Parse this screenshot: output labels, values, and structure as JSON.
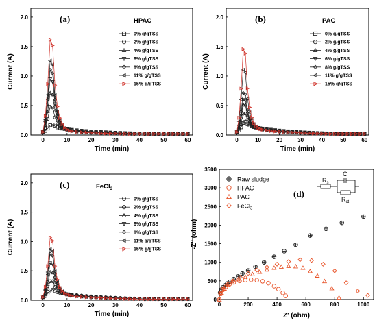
{
  "chart_data": [
    {
      "id": "a",
      "type": "line",
      "panel_label": "(a)",
      "title": "HPAC",
      "xlabel": "Time (min)",
      "ylabel": "Current (A)",
      "xlim": [
        -5,
        62
      ],
      "ylim": [
        0,
        2.15
      ],
      "xticks": [
        0,
        10,
        20,
        30,
        40,
        50,
        60
      ],
      "yticks": [
        0.0,
        0.5,
        1.0,
        1.5,
        2.0
      ],
      "legend_position": "top-right",
      "series": [
        {
          "name": "0% g/gTSS",
          "marker": "square",
          "color": "#222222",
          "peak": 0.2,
          "tail": 0.13
        },
        {
          "name": "2% g/gTSS",
          "marker": "circle",
          "color": "#222222",
          "peak": 0.6,
          "tail": 0.12
        },
        {
          "name": "4% g/gTSS",
          "marker": "triangle-up",
          "color": "#222222",
          "peak": 0.9,
          "tail": 0.11
        },
        {
          "name": "6% g/gTSS",
          "marker": "triangle-down",
          "color": "#222222",
          "peak": 1.2,
          "tail": 0.1
        },
        {
          "name": "8% g/gTSS",
          "marker": "diamond",
          "color": "#222222",
          "peak": 1.4,
          "tail": 0.09
        },
        {
          "name": "11% g/gTSS",
          "marker": "triangle-left",
          "color": "#222222",
          "peak": 1.6,
          "tail": 0.09
        },
        {
          "name": "15% g/gTSS",
          "marker": "triangle-right",
          "color": "#d0342c",
          "peak": 2.05,
          "tail": 0.08
        }
      ]
    },
    {
      "id": "b",
      "type": "line",
      "panel_label": "(b)",
      "title": "PAC",
      "xlabel": "Time (min)",
      "ylabel": "Current (A)",
      "xlim": [
        -5,
        62
      ],
      "ylim": [
        0,
        2.15
      ],
      "xticks": [
        0,
        10,
        20,
        30,
        40,
        50,
        60
      ],
      "yticks": [
        0.0,
        0.5,
        1.0,
        1.5,
        2.0
      ],
      "legend_position": "top-right",
      "series": [
        {
          "name": "0% g/gTSS",
          "marker": "square",
          "color": "#222222",
          "peak": 0.25,
          "tail": 0.16
        },
        {
          "name": "2% g/gTSS",
          "marker": "circle",
          "color": "#222222",
          "peak": 0.45,
          "tail": 0.15
        },
        {
          "name": "4% g/gTSS",
          "marker": "triangle-up",
          "color": "#222222",
          "peak": 0.65,
          "tail": 0.14
        },
        {
          "name": "6% g/gTSS",
          "marker": "triangle-down",
          "color": "#222222",
          "peak": 0.75,
          "tail": 0.14
        },
        {
          "name": "8% g/gTSS",
          "marker": "diamond",
          "color": "#222222",
          "peak": 0.9,
          "tail": 0.13
        },
        {
          "name": "11% g/gTSS",
          "marker": "triangle-left",
          "color": "#222222",
          "peak": 1.4,
          "tail": 0.13
        },
        {
          "name": "15% g/gTSS",
          "marker": "triangle-right",
          "color": "#d0342c",
          "peak": 1.85,
          "tail": 0.12
        }
      ]
    },
    {
      "id": "c",
      "type": "line",
      "panel_label": "(c)",
      "title": "FeCl",
      "title_sub": "3",
      "xlabel": "Time (min)",
      "ylabel": "Current (A)",
      "xlim": [
        -5,
        62
      ],
      "ylim": [
        0,
        2.15
      ],
      "xticks": [
        0,
        10,
        20,
        30,
        40,
        50,
        60
      ],
      "yticks": [
        0.0,
        0.5,
        1.0,
        1.5,
        2.0
      ],
      "legend_position": "top-right",
      "series": [
        {
          "name": "0% g/gTSS",
          "marker": "circle",
          "color": "#222222",
          "peak": 0.2,
          "tail": 0.14
        },
        {
          "name": "2% g/gTSS",
          "marker": "circle",
          "color": "#222222",
          "peak": 0.4,
          "tail": 0.13
        },
        {
          "name": "4% g/gTSS",
          "marker": "triangle-up",
          "color": "#222222",
          "peak": 0.6,
          "tail": 0.12
        },
        {
          "name": "6% g/gTSS",
          "marker": "triangle-down",
          "color": "#222222",
          "peak": 0.8,
          "tail": 0.12
        },
        {
          "name": "8% g/gTSS",
          "marker": "diamond",
          "color": "#222222",
          "peak": 1.0,
          "tail": 0.11
        },
        {
          "name": "11% g/gTSS",
          "marker": "triangle-left",
          "color": "#222222",
          "peak": 1.1,
          "tail": 0.11
        },
        {
          "name": "15% g/gTSS",
          "marker": "triangle-right",
          "color": "#d0342c",
          "peak": 1.35,
          "tail": 0.1
        }
      ]
    },
    {
      "id": "d",
      "type": "scatter",
      "panel_label": "(d)",
      "xlabel": "Z' (ohm)",
      "ylabel": "-Z'' (ohm)",
      "xlim": [
        0,
        1070
      ],
      "ylim": [
        0,
        3500
      ],
      "xticks": [
        0,
        200,
        400,
        600,
        800,
        1000
      ],
      "yticks": [
        0,
        500,
        1000,
        1500,
        2000,
        2500,
        3000,
        3500
      ],
      "legend_position": "top-left",
      "circuit_labels": {
        "rs": "R",
        "rs_sub": "s",
        "c": "C",
        "rct": "R",
        "rct_sub": "ct"
      },
      "series": [
        {
          "name": "Raw sludge",
          "marker": "plus-circle",
          "color": "#222222",
          "x": [
            5,
            15,
            25,
            40,
            55,
            75,
            100,
            130,
            160,
            200,
            250,
            310,
            380,
            450,
            530,
            630,
            740,
            850,
            1000
          ],
          "y": [
            180,
            270,
            330,
            380,
            430,
            480,
            550,
            620,
            700,
            780,
            880,
            1000,
            1150,
            1300,
            1470,
            1720,
            1900,
            2060,
            2230
          ]
        },
        {
          "name": "HPAC",
          "marker": "circle",
          "color": "#e8542a",
          "x": [
            0,
            10,
            25,
            45,
            70,
            100,
            140,
            180,
            220,
            260,
            300,
            340,
            380,
            410,
            440,
            460
          ],
          "y": [
            0,
            150,
            260,
            340,
            410,
            460,
            500,
            520,
            530,
            520,
            490,
            440,
            360,
            280,
            180,
            100
          ]
        },
        {
          "name": "PAC",
          "marker": "triangle-up",
          "color": "#e8542a",
          "x": [
            0,
            15,
            35,
            60,
            90,
            130,
            180,
            230,
            280,
            330,
            380,
            430,
            480,
            530,
            580,
            630,
            680,
            730,
            780,
            830
          ],
          "y": [
            0,
            180,
            290,
            380,
            460,
            540,
            610,
            680,
            740,
            800,
            850,
            880,
            900,
            890,
            850,
            760,
            640,
            490,
            300,
            50
          ]
        },
        {
          "name": "FeCl3",
          "label": "FeCl",
          "label_sub": "3",
          "marker": "diamond",
          "color": "#e8542a",
          "x": [
            5,
            25,
            55,
            95,
            145,
            200,
            260,
            330,
            400,
            480,
            560,
            640,
            720,
            800,
            880,
            960,
            1030
          ],
          "y": [
            170,
            300,
            400,
            500,
            600,
            700,
            790,
            870,
            950,
            1020,
            1070,
            1050,
            950,
            770,
            450,
            230,
            110
          ]
        }
      ]
    }
  ]
}
